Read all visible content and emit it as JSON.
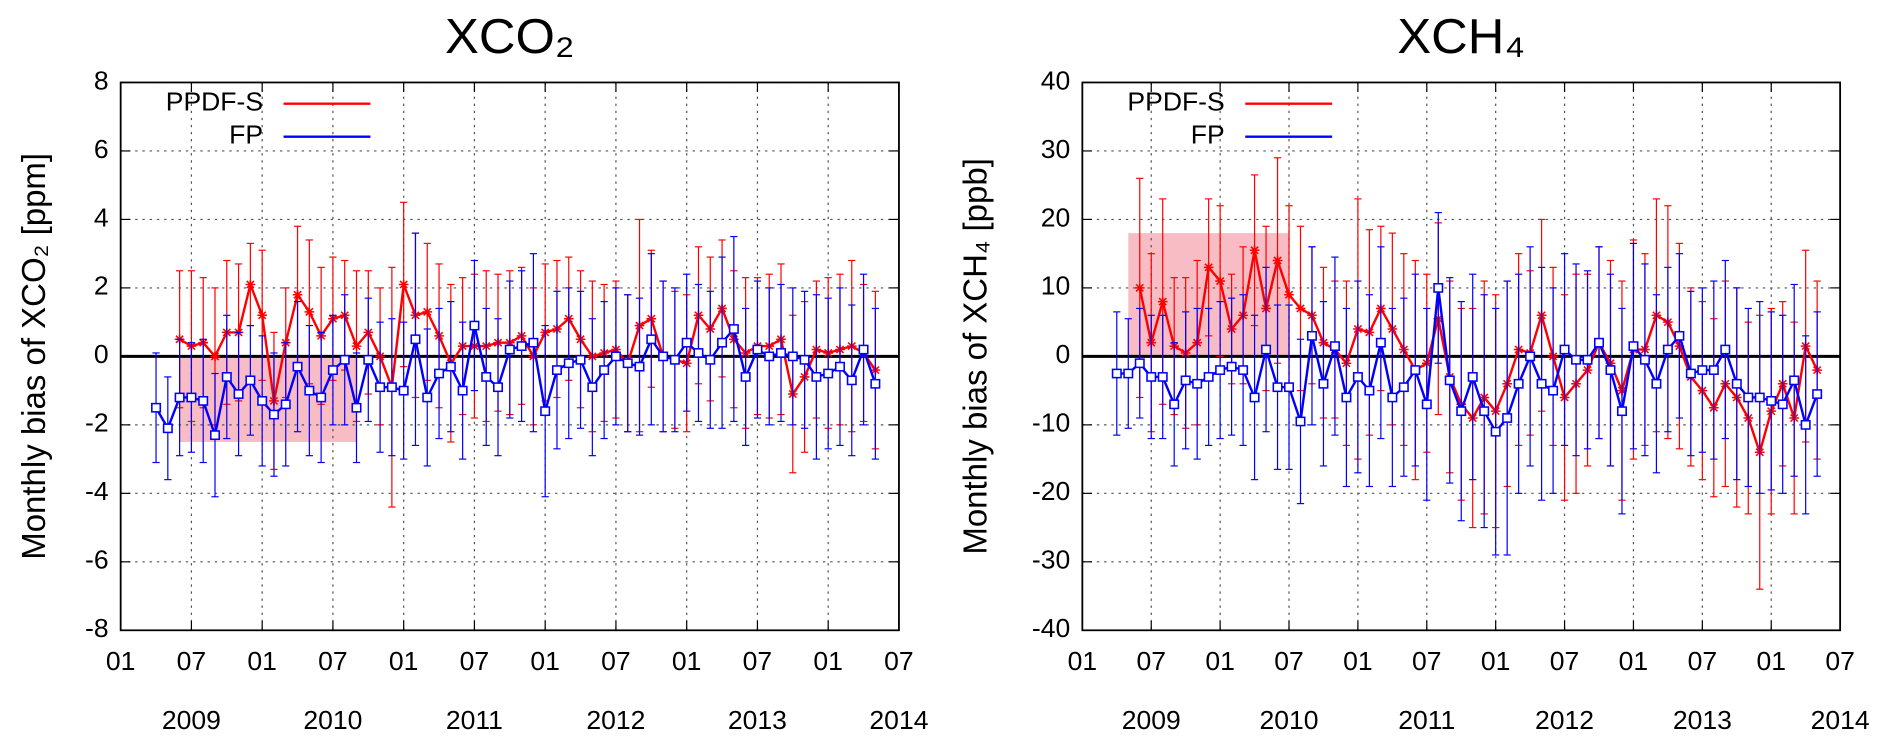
{
  "chart_data": [
    {
      "type": "line",
      "title": "XCO₂",
      "y_label": "Monthly bias of XCO₂ [ppm]",
      "x": [
        "2009-04",
        "2009-05",
        "2009-06",
        "2009-07",
        "2009-08",
        "2009-09",
        "2009-10",
        "2009-11",
        "2009-12",
        "2010-01",
        "2010-02",
        "2010-03",
        "2010-04",
        "2010-05",
        "2010-06",
        "2010-07",
        "2010-08",
        "2010-09",
        "2010-10",
        "2010-11",
        "2010-12",
        "2011-01",
        "2011-02",
        "2011-03",
        "2011-04",
        "2011-05",
        "2011-06",
        "2011-07",
        "2011-08",
        "2011-09",
        "2011-10",
        "2011-11",
        "2011-12",
        "2012-01",
        "2012-02",
        "2012-03",
        "2012-04",
        "2012-05",
        "2012-06",
        "2012-07",
        "2012-08",
        "2012-09",
        "2012-10",
        "2012-11",
        "2012-12",
        "2013-01",
        "2013-02",
        "2013-03",
        "2013-04",
        "2013-05",
        "2013-06",
        "2013-07",
        "2013-08",
        "2013-09",
        "2013-10",
        "2013-11",
        "2013-12",
        "2014-01",
        "2014-02",
        "2014-03",
        "2014-04",
        "2014-05"
      ],
      "series": [
        {
          "name": "PPDF-S",
          "color": "#ff0000",
          "marker": "star",
          "values": [
            null,
            null,
            0.5,
            0.3,
            0.4,
            0.0,
            0.7,
            0.7,
            2.1,
            1.2,
            -1.3,
            0.4,
            1.8,
            1.3,
            0.6,
            1.1,
            1.2,
            0.3,
            0.7,
            0.0,
            -0.9,
            2.1,
            1.2,
            1.3,
            0.6,
            -0.2,
            0.3,
            0.3,
            0.3,
            0.4,
            0.4,
            0.6,
            0.0,
            0.7,
            0.8,
            1.1,
            0.5,
            0.0,
            0.1,
            0.2,
            -0.2,
            0.9,
            1.1,
            0.0,
            -0.1,
            -0.2,
            1.2,
            0.8,
            1.4,
            0.5,
            0.1,
            0.3,
            0.3,
            0.5,
            -1.1,
            -0.6,
            0.2,
            0.1,
            0.2,
            0.3,
            0.1,
            -0.4
          ],
          "errors": [
            null,
            null,
            2.0,
            2.2,
            1.9,
            2.0,
            2.1,
            2.0,
            1.2,
            1.9,
            2.0,
            1.6,
            2.0,
            2.1,
            2.0,
            1.8,
            1.6,
            2.2,
            1.8,
            2.0,
            3.5,
            2.4,
            2.4,
            2.0,
            2.1,
            2.3,
            2.0,
            2.1,
            2.2,
            2.0,
            2.1,
            2.0,
            2.0,
            2.0,
            2.0,
            1.8,
            2.0,
            2.2,
            2.0,
            2.0,
            2.0,
            3.1,
            2.0,
            2.2,
            2.0,
            2.0,
            2.0,
            2.1,
            2.0,
            2.0,
            2.2,
            2.0,
            2.1,
            2.2,
            2.3,
            2.2,
            2.0,
            2.2,
            2.2,
            2.5,
            2.0,
            2.3
          ]
        },
        {
          "name": "FP",
          "color": "#0000ff",
          "marker": "square",
          "values": [
            -1.5,
            -2.1,
            -1.2,
            -1.2,
            -1.3,
            -2.3,
            -0.6,
            -1.1,
            -0.7,
            -1.3,
            -1.7,
            -1.4,
            -0.3,
            -1.0,
            -1.2,
            -0.4,
            -0.1,
            -1.5,
            -0.1,
            -0.9,
            -0.9,
            -1.0,
            0.5,
            -1.2,
            -0.5,
            -0.3,
            -1.0,
            0.9,
            -0.6,
            -0.9,
            0.2,
            0.3,
            0.4,
            -1.6,
            -0.4,
            -0.2,
            -0.1,
            -0.9,
            -0.4,
            0.0,
            -0.2,
            -0.3,
            0.5,
            0.0,
            -0.1,
            0.4,
            0.1,
            -0.1,
            0.4,
            0.8,
            -0.6,
            0.2,
            0.0,
            0.1,
            0.0,
            -0.1,
            -0.6,
            -0.5,
            -0.3,
            -0.7,
            0.2,
            -0.8
          ],
          "errors": [
            1.6,
            1.5,
            1.7,
            1.6,
            1.8,
            1.8,
            1.8,
            1.8,
            1.6,
            1.9,
            1.8,
            1.8,
            1.9,
            1.9,
            1.9,
            1.6,
            1.9,
            1.6,
            1.8,
            1.9,
            2.0,
            2.0,
            3.1,
            2.0,
            1.9,
            1.9,
            2.0,
            1.9,
            2.0,
            2.0,
            2.0,
            2.2,
            2.6,
            2.5,
            2.3,
            2.2,
            2.0,
            2.0,
            2.0,
            2.0,
            2.0,
            2.0,
            2.5,
            2.2,
            2.1,
            2.0,
            2.0,
            2.0,
            2.5,
            2.7,
            2.0,
            2.0,
            2.0,
            2.0,
            2.0,
            2.0,
            2.4,
            2.2,
            2.3,
            2.2,
            2.2,
            2.2
          ]
        }
      ],
      "shaded_region": {
        "x": [
          "2009-06",
          "2010-09"
        ],
        "y": [
          -2.5,
          0
        ],
        "color": "#f4a6b0"
      },
      "reference_line": 0,
      "xlim": [
        "2009-01",
        "2014-07"
      ],
      "xticks": [
        {
          "value": "2009-01",
          "label": "01"
        },
        {
          "value": "2009-07",
          "label": "07"
        },
        {
          "value": "2010-01",
          "label": "01"
        },
        {
          "value": "2010-07",
          "label": "07"
        },
        {
          "value": "2011-01",
          "label": "01"
        },
        {
          "value": "2011-07",
          "label": "07"
        },
        {
          "value": "2012-01",
          "label": "01"
        },
        {
          "value": "2012-07",
          "label": "07"
        },
        {
          "value": "2013-01",
          "label": "01"
        },
        {
          "value": "2013-07",
          "label": "07"
        },
        {
          "value": "2014-01",
          "label": "01"
        },
        {
          "value": "2014-07",
          "label": "07"
        }
      ],
      "year_labels": [
        "2009",
        "2010",
        "2011",
        "2012",
        "2013",
        "2014"
      ],
      "ylim": [
        -8,
        8
      ],
      "yticks": [
        -8,
        -6,
        -4,
        -2,
        0,
        2,
        4,
        6,
        8
      ],
      "grid": true,
      "legend": "upper left"
    },
    {
      "type": "line",
      "title": "XCH₄",
      "y_label": "Monthly bias of XCH₄ [ppb]",
      "x": [
        "2009-04",
        "2009-05",
        "2009-06",
        "2009-07",
        "2009-08",
        "2009-09",
        "2009-10",
        "2009-11",
        "2009-12",
        "2010-01",
        "2010-02",
        "2010-03",
        "2010-04",
        "2010-05",
        "2010-06",
        "2010-07",
        "2010-08",
        "2010-09",
        "2010-10",
        "2010-11",
        "2010-12",
        "2011-01",
        "2011-02",
        "2011-03",
        "2011-04",
        "2011-05",
        "2011-06",
        "2011-07",
        "2011-08",
        "2011-09",
        "2011-10",
        "2011-11",
        "2011-12",
        "2012-01",
        "2012-02",
        "2012-03",
        "2012-04",
        "2012-05",
        "2012-06",
        "2012-07",
        "2012-08",
        "2012-09",
        "2012-10",
        "2012-11",
        "2012-12",
        "2013-01",
        "2013-02",
        "2013-03",
        "2013-04",
        "2013-05",
        "2013-06",
        "2013-07",
        "2013-08",
        "2013-09",
        "2013-10",
        "2013-11",
        "2013-12",
        "2014-01",
        "2014-02",
        "2014-03",
        "2014-04",
        "2014-05"
      ],
      "series": [
        {
          "name": "PPDF-S",
          "color": "#ff0000",
          "marker": "star",
          "values": [
            null,
            null,
            10,
            2,
            8,
            1.5,
            0.5,
            2,
            13,
            11,
            4,
            6,
            15.5,
            7,
            14,
            9,
            7,
            6,
            2,
            1,
            -1,
            4,
            3.5,
            7,
            4,
            1,
            -2,
            -1,
            5.5,
            -3,
            -7,
            -9,
            -6,
            -8,
            -4,
            1,
            0.5,
            6,
            0,
            -6,
            -4,
            -2,
            2,
            -1,
            -5,
            1,
            1,
            6,
            5,
            1.5,
            -3,
            -5,
            -7.5,
            -4,
            -6,
            -9,
            -14,
            -8,
            -4,
            -9,
            1.5,
            -2
          ],
          "errors": [
            null,
            null,
            16,
            13,
            15,
            10,
            11,
            12,
            10,
            11,
            8,
            10,
            11,
            12,
            15,
            13,
            12,
            10,
            11,
            10,
            12,
            19,
            15,
            12,
            14,
            14,
            16,
            13,
            14,
            14,
            14,
            16,
            17,
            17,
            15,
            14,
            12,
            14,
            13,
            15,
            16,
            14,
            14,
            15,
            16,
            16,
            14,
            17,
            17,
            15,
            13,
            13,
            13,
            15,
            16,
            14,
            20,
            15,
            12,
            14,
            14,
            13
          ]
        },
        {
          "name": "FP",
          "color": "#0000ff",
          "marker": "square",
          "values": [
            -2.5,
            -2.5,
            -1,
            -3,
            -3,
            -7,
            -3.5,
            -4,
            -3,
            -2,
            -1.5,
            -2,
            -6,
            1,
            -4.5,
            -4.5,
            -9.5,
            3,
            -4,
            1.5,
            -6,
            -3,
            -5,
            2,
            -6,
            -4.5,
            -2,
            -7,
            10,
            -3.5,
            -8,
            -3,
            -8,
            -11,
            -9,
            -4,
            0,
            -4,
            -5,
            1,
            -0.5,
            -0.5,
            2,
            -2,
            -8,
            1.5,
            -0.5,
            -4,
            1,
            3,
            -2.5,
            -2,
            -2,
            1,
            -4,
            -6,
            -6,
            -6.5,
            -7,
            -3.5,
            -10,
            -5.5
          ],
          "errors": [
            9,
            8,
            8,
            9,
            9,
            9,
            10,
            11,
            10,
            10,
            10,
            11,
            12,
            12,
            12,
            12,
            12,
            13,
            12,
            13,
            13,
            14,
            14,
            14,
            13,
            13,
            14,
            14,
            11,
            15,
            16,
            15,
            17,
            18,
            20,
            16,
            16,
            17,
            15,
            14,
            14,
            13,
            14,
            14,
            15,
            15,
            14,
            13,
            12,
            12,
            12,
            12,
            13,
            13,
            14,
            13,
            14,
            13,
            13,
            14,
            13,
            12
          ]
        }
      ],
      "shaded_region": {
        "x": [
          "2009-05",
          "2010-07"
        ],
        "y": [
          0,
          18
        ],
        "color": "#f4a6b0"
      },
      "reference_line": 0,
      "xlim": [
        "2009-01",
        "2014-07"
      ],
      "xticks": [
        {
          "value": "2009-01",
          "label": "01"
        },
        {
          "value": "2009-07",
          "label": "07"
        },
        {
          "value": "2010-01",
          "label": "01"
        },
        {
          "value": "2010-07",
          "label": "07"
        },
        {
          "value": "2011-01",
          "label": "01"
        },
        {
          "value": "2011-07",
          "label": "07"
        },
        {
          "value": "2012-01",
          "label": "01"
        },
        {
          "value": "2012-07",
          "label": "07"
        },
        {
          "value": "2013-01",
          "label": "01"
        },
        {
          "value": "2013-07",
          "label": "07"
        },
        {
          "value": "2014-01",
          "label": "01"
        },
        {
          "value": "2014-07",
          "label": "07"
        }
      ],
      "year_labels": [
        "2009",
        "2010",
        "2011",
        "2012",
        "2013",
        "2014"
      ],
      "ylim": [
        -40,
        40
      ],
      "yticks": [
        -40,
        -30,
        -20,
        -10,
        0,
        10,
        20,
        30,
        40
      ],
      "grid": true,
      "legend": "upper left"
    }
  ]
}
